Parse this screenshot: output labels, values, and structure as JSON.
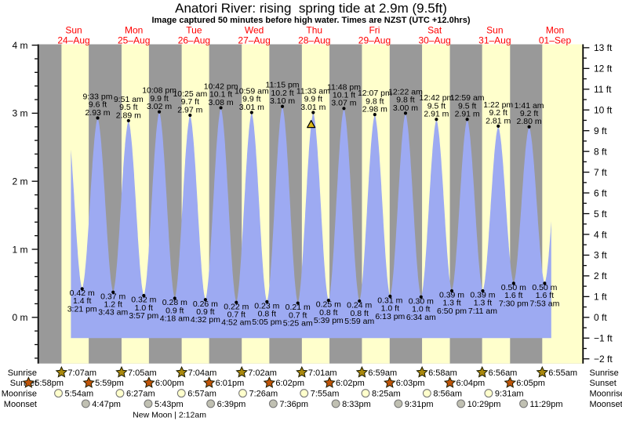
{
  "title": "Anatori River: rising  spring tide at 2.9m (9.5ft)",
  "subtitle": "Image captured 50 minutes before high water. Times are NZST (UTC +12.0hrs)",
  "rows": {
    "sunrise": "Sunrise",
    "sunset": "Sunset",
    "moonrise": "Moonrise",
    "moonset": "Moonset"
  },
  "colors": {
    "day_band": "#ffffcc",
    "night_band": "#999999",
    "tide_fill": "#9daaf2",
    "day_label": "#ff0000",
    "axis": "#000000",
    "label_text": "#000000",
    "sunrise_star": "#a9880e",
    "sunset_star": "#bf5408",
    "moonrise_circle": "#ffffcc",
    "moonset_circle": "#c0c0b2",
    "moon_outline": "#777777",
    "marker_fill": "#dcb91c",
    "marker_outline": "#000000"
  },
  "chart_data": {
    "type": "area",
    "title": "Anatori River: rising  spring tide at 2.9m (9.5ft)",
    "subtitle": "Image captured 50 minutes before high water. Times are NZST (UTC +12.0hrs)",
    "ylabel_left_unit": "m",
    "ylabel_right_unit": "ft",
    "y_left_ticks": [
      0,
      1,
      2,
      3,
      4
    ],
    "y_right_ticks": [
      -2,
      -1,
      0,
      1,
      2,
      3,
      4,
      5,
      6,
      7,
      8,
      9,
      10,
      11,
      12,
      13
    ],
    "ylim_m": [
      -0.68,
      4.01
    ],
    "grid": false,
    "days": [
      {
        "name": "Sun",
        "date": "24–Aug"
      },
      {
        "name": "Mon",
        "date": "25–Aug"
      },
      {
        "name": "Tue",
        "date": "26–Aug"
      },
      {
        "name": "Wed",
        "date": "27–Aug"
      },
      {
        "name": "Thu",
        "date": "28–Aug"
      },
      {
        "name": "Fri",
        "date": "29–Aug"
      },
      {
        "name": "Sat",
        "date": "30–Aug"
      },
      {
        "name": "Sun",
        "date": "31–Aug"
      },
      {
        "name": "Mon",
        "date": "01–Sep"
      }
    ],
    "high_tides": [
      {
        "day": 0,
        "time": "9:33 pm",
        "height_ft": "9.6 ft",
        "height_m": "2.93 m"
      },
      {
        "day": 1,
        "time": "9:51 am",
        "height_ft": "9.5 ft",
        "height_m": "2.89 m"
      },
      {
        "day": 1,
        "time": "10:08 pm",
        "height_ft": "9.9 ft",
        "height_m": "3.02 m"
      },
      {
        "day": 2,
        "time": "10:25 am",
        "height_ft": "9.7 ft",
        "height_m": "2.97 m"
      },
      {
        "day": 2,
        "time": "10:42 pm",
        "height_ft": "10.1 ft",
        "height_m": "3.08 m"
      },
      {
        "day": 3,
        "time": "10:59 am",
        "height_ft": "9.9 ft",
        "height_m": "3.01 m"
      },
      {
        "day": 3,
        "time": "11:15 pm",
        "height_ft": "10.2 ft",
        "height_m": "3.10 m"
      },
      {
        "day": 4,
        "time": "11:33 am",
        "height_ft": "9.9 ft",
        "height_m": "3.01 m"
      },
      {
        "day": 4,
        "time": "11:48 pm",
        "height_ft": "10.1 ft",
        "height_m": "3.07 m"
      },
      {
        "day": 5,
        "time": "12:07 pm",
        "height_ft": "9.8 ft",
        "height_m": "2.98 m"
      },
      {
        "day": 6,
        "time": "12:22 am",
        "height_ft": "9.8 ft",
        "height_m": "3.00 m"
      },
      {
        "day": 6,
        "time": "12:42 pm",
        "height_ft": "9.5 ft",
        "height_m": "2.91 m"
      },
      {
        "day": 7,
        "time": "12:59 am",
        "height_ft": "9.5 ft",
        "height_m": "2.91 m"
      },
      {
        "day": 7,
        "time": "1:22 pm",
        "height_ft": "9.2 ft",
        "height_m": "2.81 m"
      },
      {
        "day": 8,
        "time": "1:41 am",
        "height_ft": "9.2 ft",
        "height_m": "2.80 m"
      }
    ],
    "low_tides": [
      {
        "day": 0,
        "time": "3:21 pm",
        "height_ft": "1.4 ft",
        "height_m": "0.42 m"
      },
      {
        "day": 1,
        "time": "3:43 am",
        "height_ft": "1.2 ft",
        "height_m": "0.37 m"
      },
      {
        "day": 1,
        "time": "3:57 pm",
        "height_ft": "1.0 ft",
        "height_m": "0.32 m"
      },
      {
        "day": 2,
        "time": "4:18 am",
        "height_ft": "0.9 ft",
        "height_m": "0.28 m"
      },
      {
        "day": 2,
        "time": "4:32 pm",
        "height_ft": "0.9 ft",
        "height_m": "0.26 m"
      },
      {
        "day": 3,
        "time": "4:52 am",
        "height_ft": "0.7 ft",
        "height_m": "0.22 m"
      },
      {
        "day": 3,
        "time": "5:05 pm",
        "height_ft": "0.8 ft",
        "height_m": "0.23 m"
      },
      {
        "day": 4,
        "time": "5:25 am",
        "height_ft": "0.7 ft",
        "height_m": "0.21 m"
      },
      {
        "day": 4,
        "time": "5:39 pm",
        "height_ft": "0.8 ft",
        "height_m": "0.25 m"
      },
      {
        "day": 5,
        "time": "5:59 am",
        "height_ft": "0.8 ft",
        "height_m": "0.24 m"
      },
      {
        "day": 5,
        "time": "6:13 pm",
        "height_ft": "1.0 ft",
        "height_m": "0.31 m"
      },
      {
        "day": 6,
        "time": "6:34 am",
        "height_ft": "1.0 ft",
        "height_m": "0.30 m"
      },
      {
        "day": 6,
        "time": "6:50 pm",
        "height_ft": "1.3 ft",
        "height_m": "0.39 m"
      },
      {
        "day": 7,
        "time": "7:11 am",
        "height_ft": "1.3 ft",
        "height_m": "0.39 m"
      },
      {
        "day": 7,
        "time": "7:30 pm",
        "height_ft": "1.6 ft",
        "height_m": "0.50 m"
      },
      {
        "day": 8,
        "time": "7:53 am",
        "height_ft": "1.6 ft",
        "height_m": "0.50 m"
      }
    ],
    "sunrise": [
      {
        "day": 0,
        "time": "7:07am"
      },
      {
        "day": 1,
        "time": "7:05am"
      },
      {
        "day": 2,
        "time": "7:04am"
      },
      {
        "day": 3,
        "time": "7:02am"
      },
      {
        "day": 4,
        "time": "7:01am"
      },
      {
        "day": 5,
        "time": "6:59am"
      },
      {
        "day": 6,
        "time": "6:58am"
      },
      {
        "day": 7,
        "time": "6:56am"
      },
      {
        "day": 8,
        "time": "6:55am"
      }
    ],
    "sunset": [
      {
        "day": -1,
        "time": "5:58pm"
      },
      {
        "day": 0,
        "time": "5:59pm"
      },
      {
        "day": 1,
        "time": "6:00pm"
      },
      {
        "day": 2,
        "time": "6:01pm"
      },
      {
        "day": 3,
        "time": "6:02pm"
      },
      {
        "day": 4,
        "time": "6:02pm"
      },
      {
        "day": 5,
        "time": "6:03pm"
      },
      {
        "day": 6,
        "time": "6:04pm"
      },
      {
        "day": 7,
        "time": "6:05pm"
      }
    ],
    "moonrise": [
      {
        "day": 0,
        "time": "5:54am"
      },
      {
        "day": 1,
        "time": "6:27am"
      },
      {
        "day": 2,
        "time": "6:57am"
      },
      {
        "day": 3,
        "time": "7:26am"
      },
      {
        "day": 4,
        "time": "7:55am"
      },
      {
        "day": 5,
        "time": "8:25am"
      },
      {
        "day": 6,
        "time": "8:56am"
      },
      {
        "day": 7,
        "time": "9:31am"
      }
    ],
    "moonset": [
      {
        "day": 0,
        "time": "4:47pm"
      },
      {
        "day": 1,
        "time": "5:43pm"
      },
      {
        "day": 2,
        "time": "6:39pm"
      },
      {
        "day": 3,
        "time": "7:36pm"
      },
      {
        "day": 4,
        "time": "8:33pm"
      },
      {
        "day": 5,
        "time": "9:31pm"
      },
      {
        "day": 6,
        "time": "10:29pm"
      },
      {
        "day": 7,
        "time": "11:29pm"
      }
    ],
    "moon_phase": {
      "day": 2,
      "time": "2:12am",
      "label": "New Moon | 2:12am"
    },
    "current_marker": {
      "day": 4,
      "time": "10:43am"
    }
  }
}
